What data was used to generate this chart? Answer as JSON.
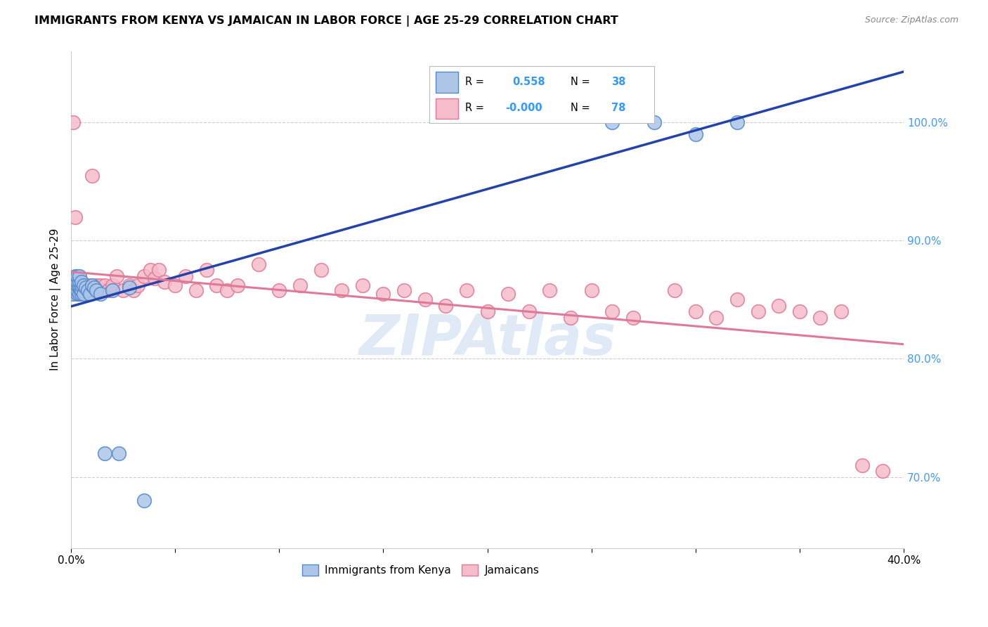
{
  "title": "IMMIGRANTS FROM KENYA VS JAMAICAN IN LABOR FORCE | AGE 25-29 CORRELATION CHART",
  "source": "Source: ZipAtlas.com",
  "ylabel": "In Labor Force | Age 25-29",
  "xlim": [
    0.0,
    0.4
  ],
  "ylim": [
    0.64,
    1.06
  ],
  "xticks": [
    0.0,
    0.05,
    0.1,
    0.15,
    0.2,
    0.25,
    0.3,
    0.35,
    0.4
  ],
  "yticks_right": [
    0.7,
    0.8,
    0.9,
    1.0
  ],
  "yticklabels_right": [
    "70.0%",
    "80.0%",
    "90.0%",
    "100.0%"
  ],
  "kenya_R": "0.558",
  "kenya_N": "38",
  "jamaican_R": "-0.000",
  "jamaican_N": "78",
  "kenya_color": "#adc6e8",
  "kenya_edge_color": "#5588cc",
  "jamaican_color": "#f5bccb",
  "jamaican_edge_color": "#e07898",
  "kenya_line_color": "#2244aa",
  "jamaican_line_color": "#e07898",
  "watermark": "ZIPAtlas",
  "watermark_color": "#c8d8f0",
  "kenya_x": [
    0.001,
    0.001,
    0.002,
    0.002,
    0.002,
    0.002,
    0.003,
    0.003,
    0.003,
    0.003,
    0.003,
    0.004,
    0.004,
    0.004,
    0.004,
    0.004,
    0.005,
    0.005,
    0.005,
    0.005,
    0.006,
    0.006,
    0.007,
    0.008,
    0.009,
    0.01,
    0.011,
    0.012,
    0.014,
    0.016,
    0.02,
    0.023,
    0.028,
    0.035,
    0.26,
    0.28,
    0.3,
    0.32
  ],
  "kenya_y": [
    0.855,
    0.86,
    0.86,
    0.865,
    0.868,
    0.87,
    0.855,
    0.858,
    0.862,
    0.865,
    0.87,
    0.855,
    0.86,
    0.862,
    0.865,
    0.87,
    0.855,
    0.858,
    0.862,
    0.865,
    0.855,
    0.862,
    0.86,
    0.858,
    0.855,
    0.862,
    0.86,
    0.858,
    0.855,
    0.72,
    0.858,
    0.72,
    0.86,
    0.68,
    1.0,
    1.0,
    0.99,
    1.0
  ],
  "jamaican_x": [
    0.001,
    0.001,
    0.001,
    0.002,
    0.002,
    0.002,
    0.003,
    0.003,
    0.003,
    0.004,
    0.004,
    0.004,
    0.005,
    0.005,
    0.006,
    0.006,
    0.007,
    0.007,
    0.008,
    0.008,
    0.009,
    0.009,
    0.01,
    0.011,
    0.012,
    0.013,
    0.014,
    0.015,
    0.016,
    0.018,
    0.02,
    0.022,
    0.025,
    0.028,
    0.03,
    0.032,
    0.035,
    0.038,
    0.04,
    0.042,
    0.045,
    0.05,
    0.055,
    0.06,
    0.065,
    0.07,
    0.075,
    0.08,
    0.09,
    0.1,
    0.11,
    0.12,
    0.13,
    0.14,
    0.15,
    0.16,
    0.17,
    0.18,
    0.19,
    0.2,
    0.21,
    0.22,
    0.23,
    0.24,
    0.25,
    0.26,
    0.27,
    0.29,
    0.3,
    0.31,
    0.32,
    0.33,
    0.34,
    0.35,
    0.36,
    0.37,
    0.38,
    0.39
  ],
  "jamaican_y": [
    1.0,
    0.858,
    0.86,
    0.92,
    0.858,
    0.862,
    0.858,
    0.862,
    0.86,
    0.858,
    0.862,
    0.86,
    0.858,
    0.862,
    0.858,
    0.862,
    0.858,
    0.862,
    0.858,
    0.862,
    0.858,
    0.862,
    0.955,
    0.858,
    0.862,
    0.858,
    0.862,
    0.858,
    0.862,
    0.858,
    0.862,
    0.87,
    0.858,
    0.862,
    0.858,
    0.862,
    0.87,
    0.875,
    0.868,
    0.875,
    0.865,
    0.862,
    0.87,
    0.858,
    0.875,
    0.862,
    0.858,
    0.862,
    0.88,
    0.858,
    0.862,
    0.875,
    0.858,
    0.862,
    0.855,
    0.858,
    0.85,
    0.845,
    0.858,
    0.84,
    0.855,
    0.84,
    0.858,
    0.835,
    0.858,
    0.84,
    0.835,
    0.858,
    0.84,
    0.835,
    0.85,
    0.84,
    0.845,
    0.84,
    0.835,
    0.84,
    0.71,
    0.705
  ]
}
